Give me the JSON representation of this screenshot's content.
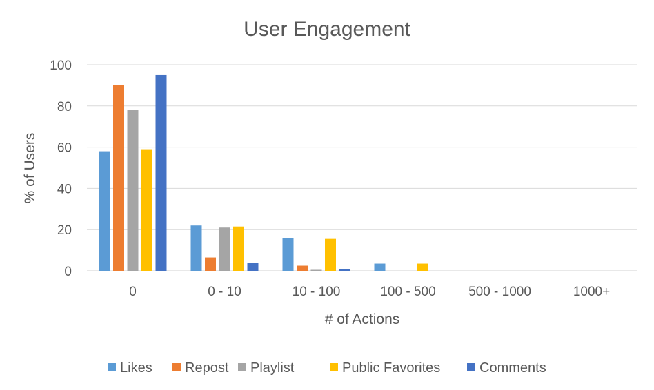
{
  "chart_data": {
    "type": "bar",
    "title": "User Engagement",
    "xlabel": "# of Actions",
    "ylabel": "% of Users",
    "categories": [
      "0",
      "0 - 10",
      "10 - 100",
      "100 - 500",
      "500 - 1000",
      "1000+"
    ],
    "ylim": [
      0,
      100
    ],
    "yticks": [
      "0",
      "20",
      "40",
      "60",
      "80",
      "100"
    ],
    "grid": true,
    "legend_position": "bottom",
    "series": [
      {
        "name": "Likes",
        "color": "#5B9BD5",
        "values": [
          58,
          22,
          16,
          3.5,
          0,
          0
        ]
      },
      {
        "name": "Repost",
        "color": "#ED7D31",
        "values": [
          90,
          6.5,
          2.5,
          0,
          0,
          0
        ]
      },
      {
        "name": "Playlist",
        "color": "#A5A5A5",
        "values": [
          78,
          21,
          0.5,
          0,
          0,
          0
        ]
      },
      {
        "name": "Public Favorites",
        "color": "#FFC000",
        "values": [
          59,
          21.5,
          15.5,
          3.5,
          0,
          0
        ]
      },
      {
        "name": "Comments",
        "color": "#4472C4",
        "values": [
          95,
          4,
          1,
          0,
          0,
          0
        ]
      }
    ]
  }
}
